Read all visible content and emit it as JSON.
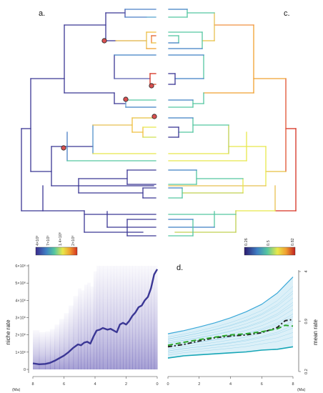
{
  "panels": {
    "a": "a.",
    "b": "b.",
    "c": "c.",
    "d": "d."
  },
  "legend_a": {
    "ticks": [
      "4×10³",
      "7×10⁵",
      "1.4×10⁶",
      "2×10⁶"
    ],
    "colors": [
      "#3a2a8c",
      "#3f7fc4",
      "#54c6a0",
      "#e8e84a",
      "#f0a030",
      "#d63020"
    ]
  },
  "legend_c": {
    "ticks": [
      "0.26",
      "0.5",
      "0.82"
    ],
    "colors": [
      "#2a1a6e",
      "#3f7fc4",
      "#54c6a0",
      "#e8e84a",
      "#f0a030",
      "#c02020"
    ]
  },
  "chart_data": [
    {
      "type": "line",
      "panel": "b.",
      "ylabel": "niche rate",
      "xlabel": "",
      "x_unit": "(Ma)",
      "xlim": [
        8,
        0
      ],
      "ylim": [
        0,
        6000000
      ],
      "x_ticks": [
        "8",
        "6",
        "4",
        "2",
        "0"
      ],
      "y_ticks": [
        "0",
        "1×10⁶",
        "2×10⁶",
        "3×10⁶",
        "4×10⁶",
        "5×10⁶",
        "6×10⁶"
      ],
      "series": [
        {
          "color": "#3b3795",
          "x": [
            8,
            7.6,
            7.2,
            6.9,
            6.6,
            6.3,
            6.0,
            5.7,
            5.4,
            5.1,
            4.9,
            4.7,
            4.5,
            4.3,
            4.1,
            3.9,
            3.7,
            3.5,
            3.2,
            3.0,
            2.8,
            2.6,
            2.4,
            2.2,
            2.0,
            1.8,
            1.6,
            1.4,
            1.2,
            1.0,
            0.8,
            0.6,
            0.4,
            0.2,
            0
          ],
          "y": [
            350000,
            300000,
            320000,
            380000,
            500000,
            650000,
            800000,
            1000000,
            1250000,
            1450000,
            1400000,
            1550000,
            1600000,
            1500000,
            1900000,
            2250000,
            2300000,
            2400000,
            2300000,
            2350000,
            2250000,
            2150000,
            2600000,
            2700000,
            2600000,
            2800000,
            3100000,
            3300000,
            3600000,
            3700000,
            4000000,
            4200000,
            4700000,
            5500000,
            5800000
          ]
        }
      ]
    },
    {
      "type": "line",
      "panel": "d.",
      "ylabel": "mean rate",
      "xlabel": "",
      "x_unit": "(Ma)",
      "xlim": [
        0,
        8
      ],
      "ylim": [
        0.2,
        4
      ],
      "x_ticks": [
        "0",
        "2",
        "4",
        "6",
        "8"
      ],
      "y_ticks": [
        "0.2",
        "0.9",
        "4"
      ],
      "series": [
        {
          "color": "#3aa8d8",
          "x": [
            0,
            1,
            2,
            3,
            4,
            5,
            6,
            7,
            8
          ],
          "y": [
            0.62,
            0.68,
            0.76,
            0.86,
            1.0,
            1.2,
            1.5,
            2.1,
            3.4
          ]
        },
        {
          "color": "#16a6b6",
          "x": [
            0,
            1,
            2,
            3,
            4,
            5,
            6,
            7,
            8
          ],
          "y": [
            0.3,
            0.32,
            0.33,
            0.34,
            0.35,
            0.36,
            0.38,
            0.39,
            0.42
          ]
        },
        {
          "color": "#222222",
          "x": [
            0,
            1,
            2,
            3,
            4,
            5,
            6,
            7,
            7.5,
            8
          ],
          "y": [
            0.42,
            0.45,
            0.5,
            0.55,
            0.58,
            0.6,
            0.64,
            0.75,
            0.92,
            0.95
          ]
        },
        {
          "color": "#2aa82a",
          "x": [
            0,
            1,
            2,
            3,
            4,
            5,
            6,
            7,
            7.5,
            8
          ],
          "y": [
            0.44,
            0.48,
            0.52,
            0.56,
            0.6,
            0.62,
            0.66,
            0.72,
            0.8,
            0.78
          ]
        }
      ]
    }
  ]
}
